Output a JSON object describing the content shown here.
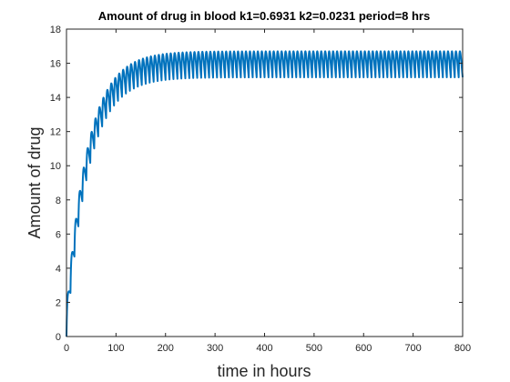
{
  "chart_data": {
    "type": "line",
    "title": "Amount of drug in blood k1=0.6931 k2=0.0231 period=8 hrs",
    "xlabel": "time in hours",
    "ylabel": "Amount of drug",
    "xlim": [
      0,
      800
    ],
    "ylim": [
      0,
      18
    ],
    "xticks": [
      0,
      100,
      200,
      300,
      400,
      500,
      600,
      700,
      800
    ],
    "yticks": [
      0,
      2,
      4,
      6,
      8,
      10,
      12,
      14,
      16,
      18
    ],
    "grid": false,
    "legend": "none",
    "dose_period_hours": 8,
    "k1": 0.6931,
    "k2": 0.0231,
    "series": [
      {
        "color": "#0072BD",
        "values_sample": [
          {
            "x": 0,
            "y": 0
          },
          {
            "x": 8,
            "y": 2.6
          },
          {
            "x": 16,
            "y": 4.9
          },
          {
            "x": 24,
            "y": 6.9
          },
          {
            "x": 32,
            "y": 8.6
          },
          {
            "x": 40,
            "y": 10.0
          },
          {
            "x": 56,
            "y": 12.0
          },
          {
            "x": 80,
            "y": 14.0
          },
          {
            "x": 120,
            "y": 15.6
          },
          {
            "x": 200,
            "y": 16.5
          },
          {
            "x": 800,
            "y": 16.7
          }
        ],
        "steady_state_range": [
          15.5,
          16.7
        ]
      }
    ]
  }
}
